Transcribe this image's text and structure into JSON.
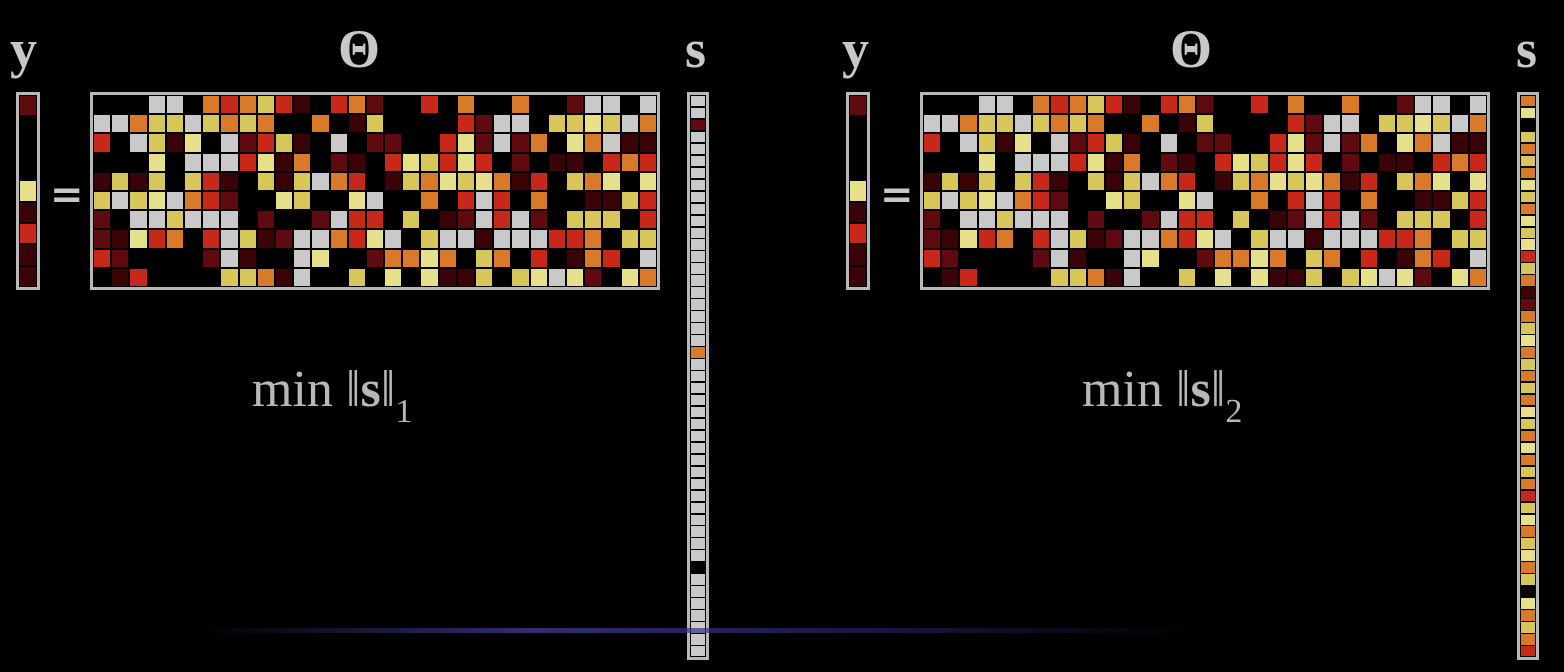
{
  "colors": {
    "background": "#000000",
    "frame": "#b8b8b8",
    "palette": [
      "#000000",
      "#3a0308",
      "#5e0a0f",
      "#c8281a",
      "#d87a2a",
      "#d7c65a",
      "#e6e08a",
      "#c9c9c9"
    ]
  },
  "panels": [
    {
      "y_label": "y",
      "theta_label": "Θ",
      "s_label": "s",
      "equals": "=",
      "formula": {
        "prefix": "min ",
        "norm_open": "‖",
        "var": "s",
        "norm_close": "‖",
        "subscript": "1"
      },
      "regularization": "L1 (sparse)",
      "y_values": [
        2,
        0,
        0,
        0,
        6,
        1,
        3,
        1,
        1
      ],
      "s_values": [
        7,
        7,
        2,
        7,
        7,
        7,
        7,
        7,
        7,
        7,
        7,
        7,
        7,
        7,
        7,
        7,
        7,
        7,
        7,
        7,
        7,
        4,
        7,
        7,
        7,
        7,
        7,
        7,
        7,
        7,
        7,
        7,
        7,
        7,
        7,
        7,
        7,
        7,
        7,
        0,
        7,
        7,
        7,
        7,
        7,
        7,
        7
      ]
    },
    {
      "y_label": "y",
      "theta_label": "Θ",
      "s_label": "s",
      "equals": "=",
      "formula": {
        "prefix": "min ",
        "norm_open": "‖",
        "var": "s",
        "norm_close": "‖",
        "subscript": "2"
      },
      "regularization": "L2 (dense)",
      "y_values": [
        2,
        0,
        0,
        0,
        6,
        1,
        3,
        1,
        1
      ],
      "s_values": [
        4,
        6,
        0,
        5,
        4,
        5,
        4,
        6,
        5,
        4,
        6,
        5,
        6,
        3,
        5,
        4,
        1,
        2,
        4,
        5,
        6,
        4,
        5,
        4,
        5,
        4,
        6,
        5,
        4,
        6,
        4,
        5,
        4,
        3,
        5,
        6,
        4,
        5,
        6,
        4,
        5,
        0,
        6,
        4,
        5,
        4,
        3
      ]
    }
  ]
}
